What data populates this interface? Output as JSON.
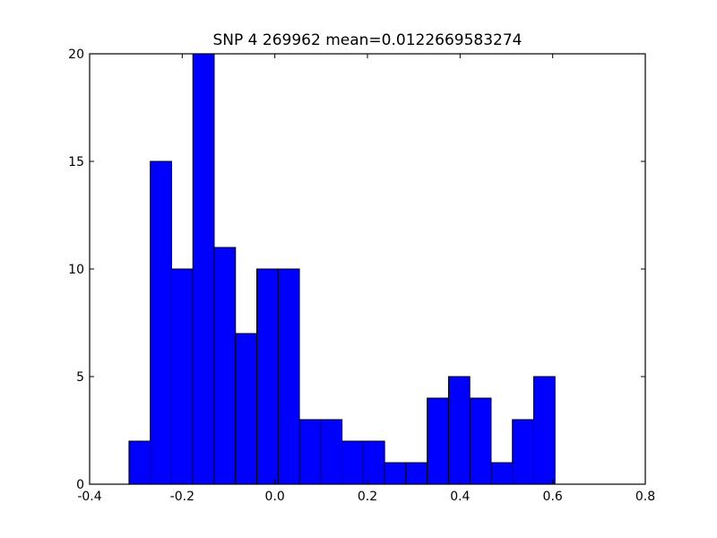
{
  "chart_data": {
    "type": "bar",
    "title": "SNP 4 269962 mean=0.0122669583274",
    "xlabel": "",
    "ylabel": "",
    "xlim": [
      -0.4,
      0.8
    ],
    "ylim": [
      0,
      20
    ],
    "xticks": [
      -0.4,
      -0.2,
      0.0,
      0.2,
      0.4,
      0.6,
      0.8
    ],
    "xtick_labels": [
      "-0.4",
      "-0.2",
      "0.0",
      "0.2",
      "0.4",
      "0.6",
      "0.8"
    ],
    "yticks": [
      0,
      5,
      10,
      15,
      20
    ],
    "ytick_labels": [
      "0",
      "5",
      "10",
      "15",
      "20"
    ],
    "grid": false,
    "bar_color": "#0000ff",
    "bar_edge_color": "#000000",
    "bins": [
      {
        "left": -0.315,
        "right": -0.269,
        "value": 2
      },
      {
        "left": -0.269,
        "right": -0.223,
        "value": 15
      },
      {
        "left": -0.223,
        "right": -0.177,
        "value": 10
      },
      {
        "left": -0.177,
        "right": -0.131,
        "value": 20
      },
      {
        "left": -0.131,
        "right": -0.085,
        "value": 11
      },
      {
        "left": -0.085,
        "right": -0.039,
        "value": 7
      },
      {
        "left": -0.039,
        "right": 0.007,
        "value": 10
      },
      {
        "left": 0.007,
        "right": 0.053,
        "value": 10
      },
      {
        "left": 0.053,
        "right": 0.099,
        "value": 3
      },
      {
        "left": 0.099,
        "right": 0.145,
        "value": 3
      },
      {
        "left": 0.145,
        "right": 0.191,
        "value": 2
      },
      {
        "left": 0.191,
        "right": 0.237,
        "value": 2
      },
      {
        "left": 0.237,
        "right": 0.283,
        "value": 1
      },
      {
        "left": 0.283,
        "right": 0.329,
        "value": 1
      },
      {
        "left": 0.329,
        "right": 0.375,
        "value": 4
      },
      {
        "left": 0.375,
        "right": 0.421,
        "value": 5
      },
      {
        "left": 0.421,
        "right": 0.467,
        "value": 4
      },
      {
        "left": 0.467,
        "right": 0.513,
        "value": 1
      },
      {
        "left": 0.513,
        "right": 0.559,
        "value": 3
      },
      {
        "left": 0.559,
        "right": 0.605,
        "value": 5
      }
    ]
  }
}
